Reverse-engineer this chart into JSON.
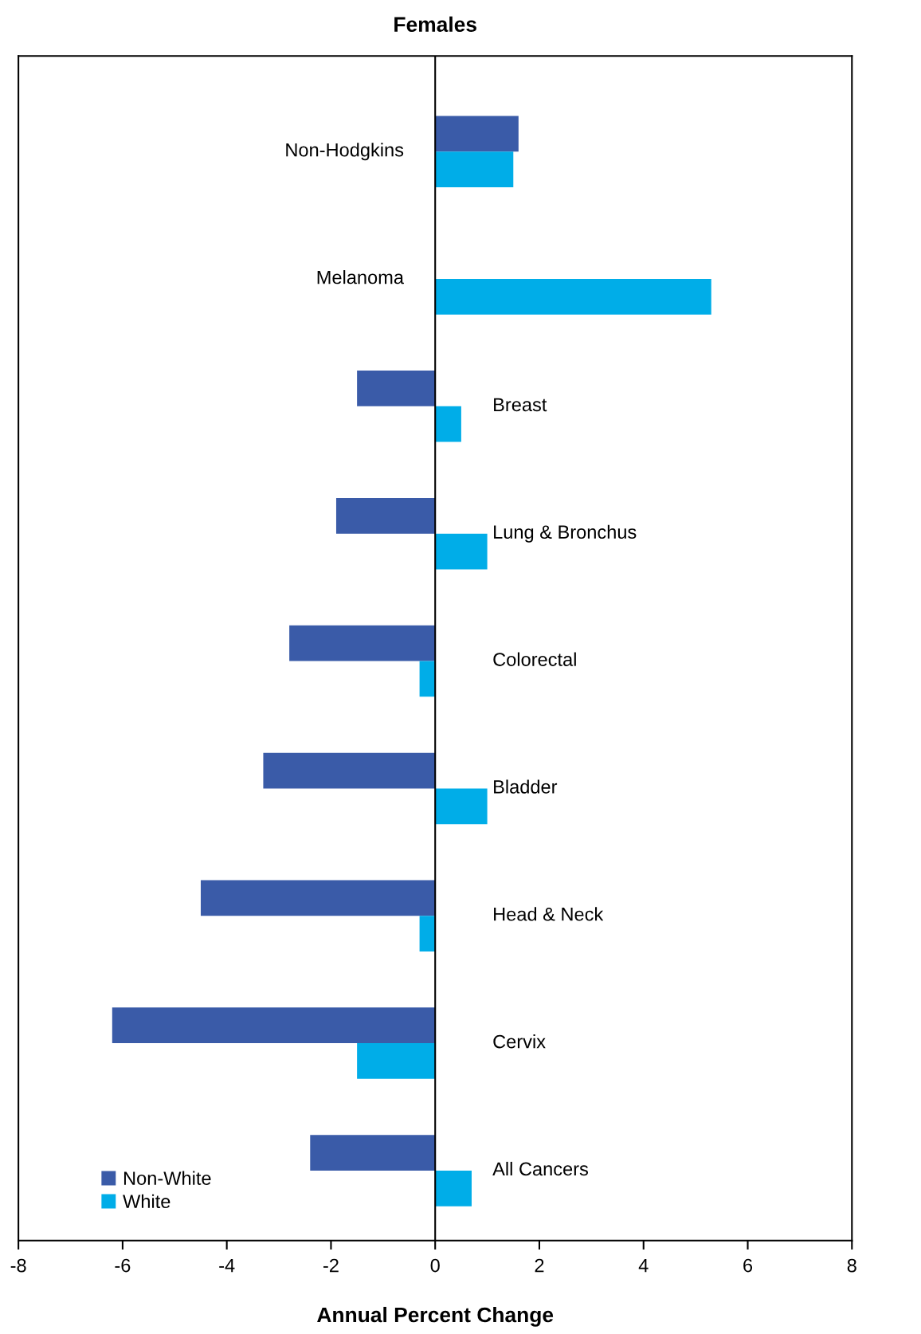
{
  "chart_data": {
    "type": "bar",
    "orientation": "horizontal",
    "title": "Females",
    "xlabel": "Annual Percent Change",
    "categories": [
      "Non-Hodgkins",
      "Melanoma",
      "Breast",
      "Lung & Bronchus",
      "Colorectal",
      "Bladder",
      "Head & Neck",
      "Cervix",
      "All Cancers"
    ],
    "series": [
      {
        "name": "Non-White",
        "color": "#3a5ba8",
        "values": [
          1.6,
          null,
          -1.5,
          -1.9,
          -2.8,
          -3.3,
          -4.5,
          -6.2,
          -2.4
        ]
      },
      {
        "name": "White",
        "color": "#00ade8",
        "values": [
          1.5,
          5.3,
          0.5,
          1.0,
          -0.3,
          1.0,
          -0.3,
          -1.5,
          0.7
        ]
      }
    ],
    "xlim": [
      -8,
      8
    ],
    "xticks": [
      -8,
      -6,
      -4,
      -2,
      0,
      2,
      4,
      6,
      8
    ],
    "ref_lines": [
      {
        "axis": "x",
        "value": 0,
        "color": "#000000"
      }
    ],
    "tick_labels": "x",
    "grid": false,
    "legend": "bottom left"
  }
}
